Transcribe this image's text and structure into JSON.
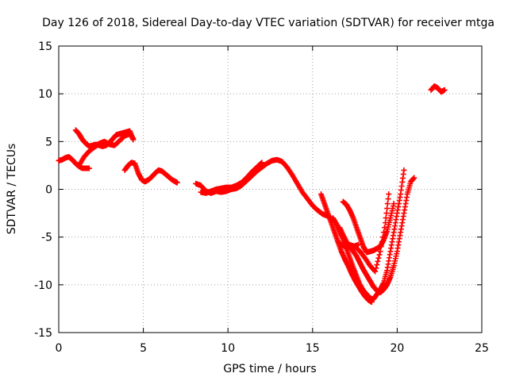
{
  "chart_data": {
    "type": "scatter",
    "title": "Day 126 of 2018, Sidereal Day-to-day VTEC variation (SDTVAR) for receiver mtga",
    "xlabel": "GPS time / hours",
    "ylabel": "SDTVAR / TECUs",
    "xlim": [
      0,
      25
    ],
    "ylim": [
      -15,
      15
    ],
    "xticks": [
      0,
      5,
      10,
      15,
      20,
      25
    ],
    "yticks": [
      -15,
      -10,
      -5,
      0,
      5,
      10,
      15
    ],
    "xtick_labels": [
      "0",
      "5",
      "10",
      "15",
      "20",
      "25"
    ],
    "ytick_labels": [
      "-15",
      "-10",
      "-5",
      "0",
      "5",
      "10",
      "15"
    ],
    "grid": true,
    "legend": "none",
    "marker": "plus",
    "color": "#ff0000",
    "series": [
      {
        "x": [
          0.0,
          0.2,
          0.4,
          0.6,
          0.8,
          1.0,
          1.2,
          1.4,
          1.6,
          1.8
        ],
        "y": [
          3.0,
          3.1,
          3.3,
          3.4,
          3.1,
          2.7,
          2.4,
          2.2,
          2.2,
          2.2
        ]
      },
      {
        "x": [
          1.0,
          1.2,
          1.4,
          1.6,
          1.8,
          2.0,
          2.2,
          2.4,
          2.6,
          2.8,
          3.0,
          3.2,
          3.4,
          3.6,
          3.8,
          4.0,
          4.2,
          4.4
        ],
        "y": [
          6.2,
          5.8,
          5.2,
          4.8,
          4.5,
          4.6,
          4.7,
          4.6,
          4.5,
          4.6,
          4.9,
          5.3,
          5.7,
          5.8,
          5.9,
          6.0,
          6.1,
          5.2
        ]
      },
      {
        "x": [
          1.2,
          1.5,
          1.8,
          2.1,
          2.4,
          2.7,
          3.0,
          3.3,
          3.6,
          3.9,
          4.2,
          4.4
        ],
        "y": [
          2.5,
          3.4,
          4.0,
          4.4,
          4.8,
          5.0,
          4.7,
          4.6,
          5.1,
          5.6,
          5.8,
          5.3
        ]
      },
      {
        "x": [
          3.9,
          4.1,
          4.3,
          4.5,
          4.7,
          4.9,
          5.1,
          5.3,
          5.5,
          5.7,
          5.9,
          6.1,
          6.3,
          6.5,
          6.7,
          6.9,
          7.0
        ],
        "y": [
          2.0,
          2.5,
          2.8,
          2.7,
          1.7,
          1.0,
          0.8,
          1.0,
          1.3,
          1.7,
          2.0,
          1.9,
          1.6,
          1.3,
          1.0,
          0.8,
          0.7
        ]
      },
      {
        "x": [
          8.1,
          8.4,
          8.7,
          9.0,
          9.3,
          9.6,
          9.9,
          10.2,
          10.5,
          10.8,
          11.1,
          11.4,
          11.7,
          12.0
        ],
        "y": [
          0.6,
          0.4,
          -0.2,
          -0.4,
          -0.2,
          -0.3,
          -0.2,
          0.0,
          0.1,
          0.4,
          0.9,
          1.4,
          1.9,
          2.4
        ]
      },
      {
        "x": [
          8.4,
          8.7,
          9.0,
          9.3,
          9.6,
          9.9,
          10.2,
          10.5,
          10.8,
          11.1,
          11.4,
          11.7,
          12.0
        ],
        "y": [
          -0.3,
          -0.4,
          -0.2,
          0.0,
          0.1,
          0.2,
          0.2,
          0.4,
          0.7,
          1.2,
          1.8,
          2.3,
          2.8
        ]
      },
      {
        "x": [
          10.5,
          10.8,
          11.1,
          11.4,
          11.7,
          12.0,
          12.3,
          12.6,
          12.9,
          13.2,
          13.5,
          13.8,
          14.1,
          14.4,
          14.7,
          15.0,
          15.3,
          15.6,
          15.9,
          16.2
        ],
        "y": [
          0.2,
          0.5,
          0.9,
          1.4,
          1.9,
          2.3,
          2.7,
          3.0,
          3.1,
          2.9,
          2.3,
          1.5,
          0.6,
          -0.3,
          -1.0,
          -1.7,
          -2.2,
          -2.6,
          -2.8,
          -3.2
        ]
      },
      {
        "x": [
          15.5,
          15.7,
          15.9,
          16.1,
          16.3,
          16.5,
          16.7,
          16.9,
          17.1,
          17.3,
          17.5,
          17.7,
          17.9,
          18.1,
          18.3,
          18.5
        ],
        "y": [
          -0.5,
          -1.5,
          -2.5,
          -3.5,
          -4.5,
          -5.5,
          -6.5,
          -7.3,
          -8.0,
          -8.8,
          -9.5,
          -10.1,
          -10.7,
          -11.2,
          -11.6,
          -11.8
        ]
      },
      {
        "x": [
          16.2,
          16.4,
          16.6,
          16.8,
          17.0,
          17.2,
          17.4,
          17.6,
          17.8,
          18.0,
          18.2,
          18.4,
          18.6,
          18.8,
          19.0,
          19.2,
          19.4,
          19.6,
          19.8,
          20.0,
          20.2,
          20.4
        ],
        "y": [
          -3.0,
          -3.6,
          -4.4,
          -5.2,
          -6.2,
          -7.2,
          -8.2,
          -9.1,
          -10.0,
          -10.6,
          -11.0,
          -11.4,
          -11.5,
          -11.0,
          -10.5,
          -9.8,
          -8.5,
          -6.5,
          -4.5,
          -2.5,
          -0.5,
          2.0
        ]
      },
      {
        "x": [
          16.6,
          16.8,
          17.0,
          17.2,
          17.4,
          17.6,
          17.8,
          18.0,
          18.2,
          18.4,
          18.6,
          18.8,
          19.0,
          19.2,
          19.4,
          19.6,
          19.8,
          20.0,
          20.2,
          20.4,
          20.6,
          20.8,
          21.0
        ],
        "y": [
          -4.0,
          -4.8,
          -5.5,
          -6.0,
          -6.5,
          -7.0,
          -7.7,
          -8.4,
          -9.0,
          -9.6,
          -10.2,
          -10.6,
          -10.8,
          -10.5,
          -10.0,
          -9.2,
          -8.0,
          -6.5,
          -4.5,
          -2.5,
          -0.5,
          0.8,
          1.2
        ]
      },
      {
        "x": [
          16.8,
          17.0,
          17.2,
          17.4,
          17.6,
          17.8,
          18.0,
          18.2,
          18.4,
          18.6,
          18.8,
          19.0,
          19.2,
          19.4,
          19.6,
          19.8
        ],
        "y": [
          -1.3,
          -1.6,
          -2.2,
          -3.0,
          -4.0,
          -5.0,
          -6.0,
          -6.6,
          -6.5,
          -6.4,
          -6.2,
          -6.0,
          -5.3,
          -4.4,
          -3.0,
          -1.5
        ]
      },
      {
        "x": [
          17.2,
          17.5,
          17.8,
          18.1,
          18.4,
          18.7,
          19.0,
          19.3,
          19.5
        ],
        "y": [
          -5.8,
          -6.0,
          -6.5,
          -7.2,
          -8.0,
          -8.6,
          -6.5,
          -3.5,
          -0.5
        ]
      },
      {
        "x": [
          16.5,
          16.8,
          17.1,
          17.4,
          17.7
        ],
        "y": [
          -5.5,
          -5.9,
          -6.1,
          -6.0,
          -5.8
        ]
      },
      {
        "x": [
          22.0,
          22.2,
          22.4,
          22.6,
          22.8
        ],
        "y": [
          10.4,
          10.8,
          10.6,
          10.2,
          10.4
        ]
      }
    ]
  }
}
